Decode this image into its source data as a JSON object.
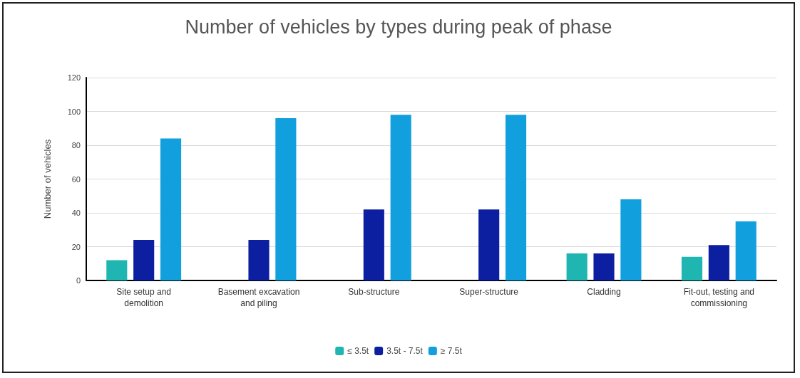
{
  "chart_data": {
    "type": "bar",
    "title": "Number of vehicles by types during peak of phase",
    "ylabel": "Number of vehicles",
    "categories": [
      "Site setup and\ndemolition",
      "Basement excavation\nand piling",
      "Sub-structure",
      "Super-structure",
      "Cladding",
      "Fit-out, testing and\ncommissioning"
    ],
    "series": [
      {
        "name": "≤ 3.5t",
        "color": "#1fb5b0",
        "values": [
          12,
          null,
          null,
          null,
          16,
          14
        ]
      },
      {
        "name": "3.5t - 7.5t",
        "color": "#0c1fa0",
        "values": [
          24,
          24,
          42,
          42,
          16,
          21
        ]
      },
      {
        "name": "≥ 7.5t",
        "color": "#119fde",
        "values": [
          84,
          96,
          98,
          98,
          48,
          35
        ]
      }
    ],
    "ylim": [
      0,
      120
    ],
    "yticks": [
      0,
      20,
      40,
      60,
      80,
      100,
      120
    ],
    "grid": "y",
    "legend": "bottom"
  }
}
